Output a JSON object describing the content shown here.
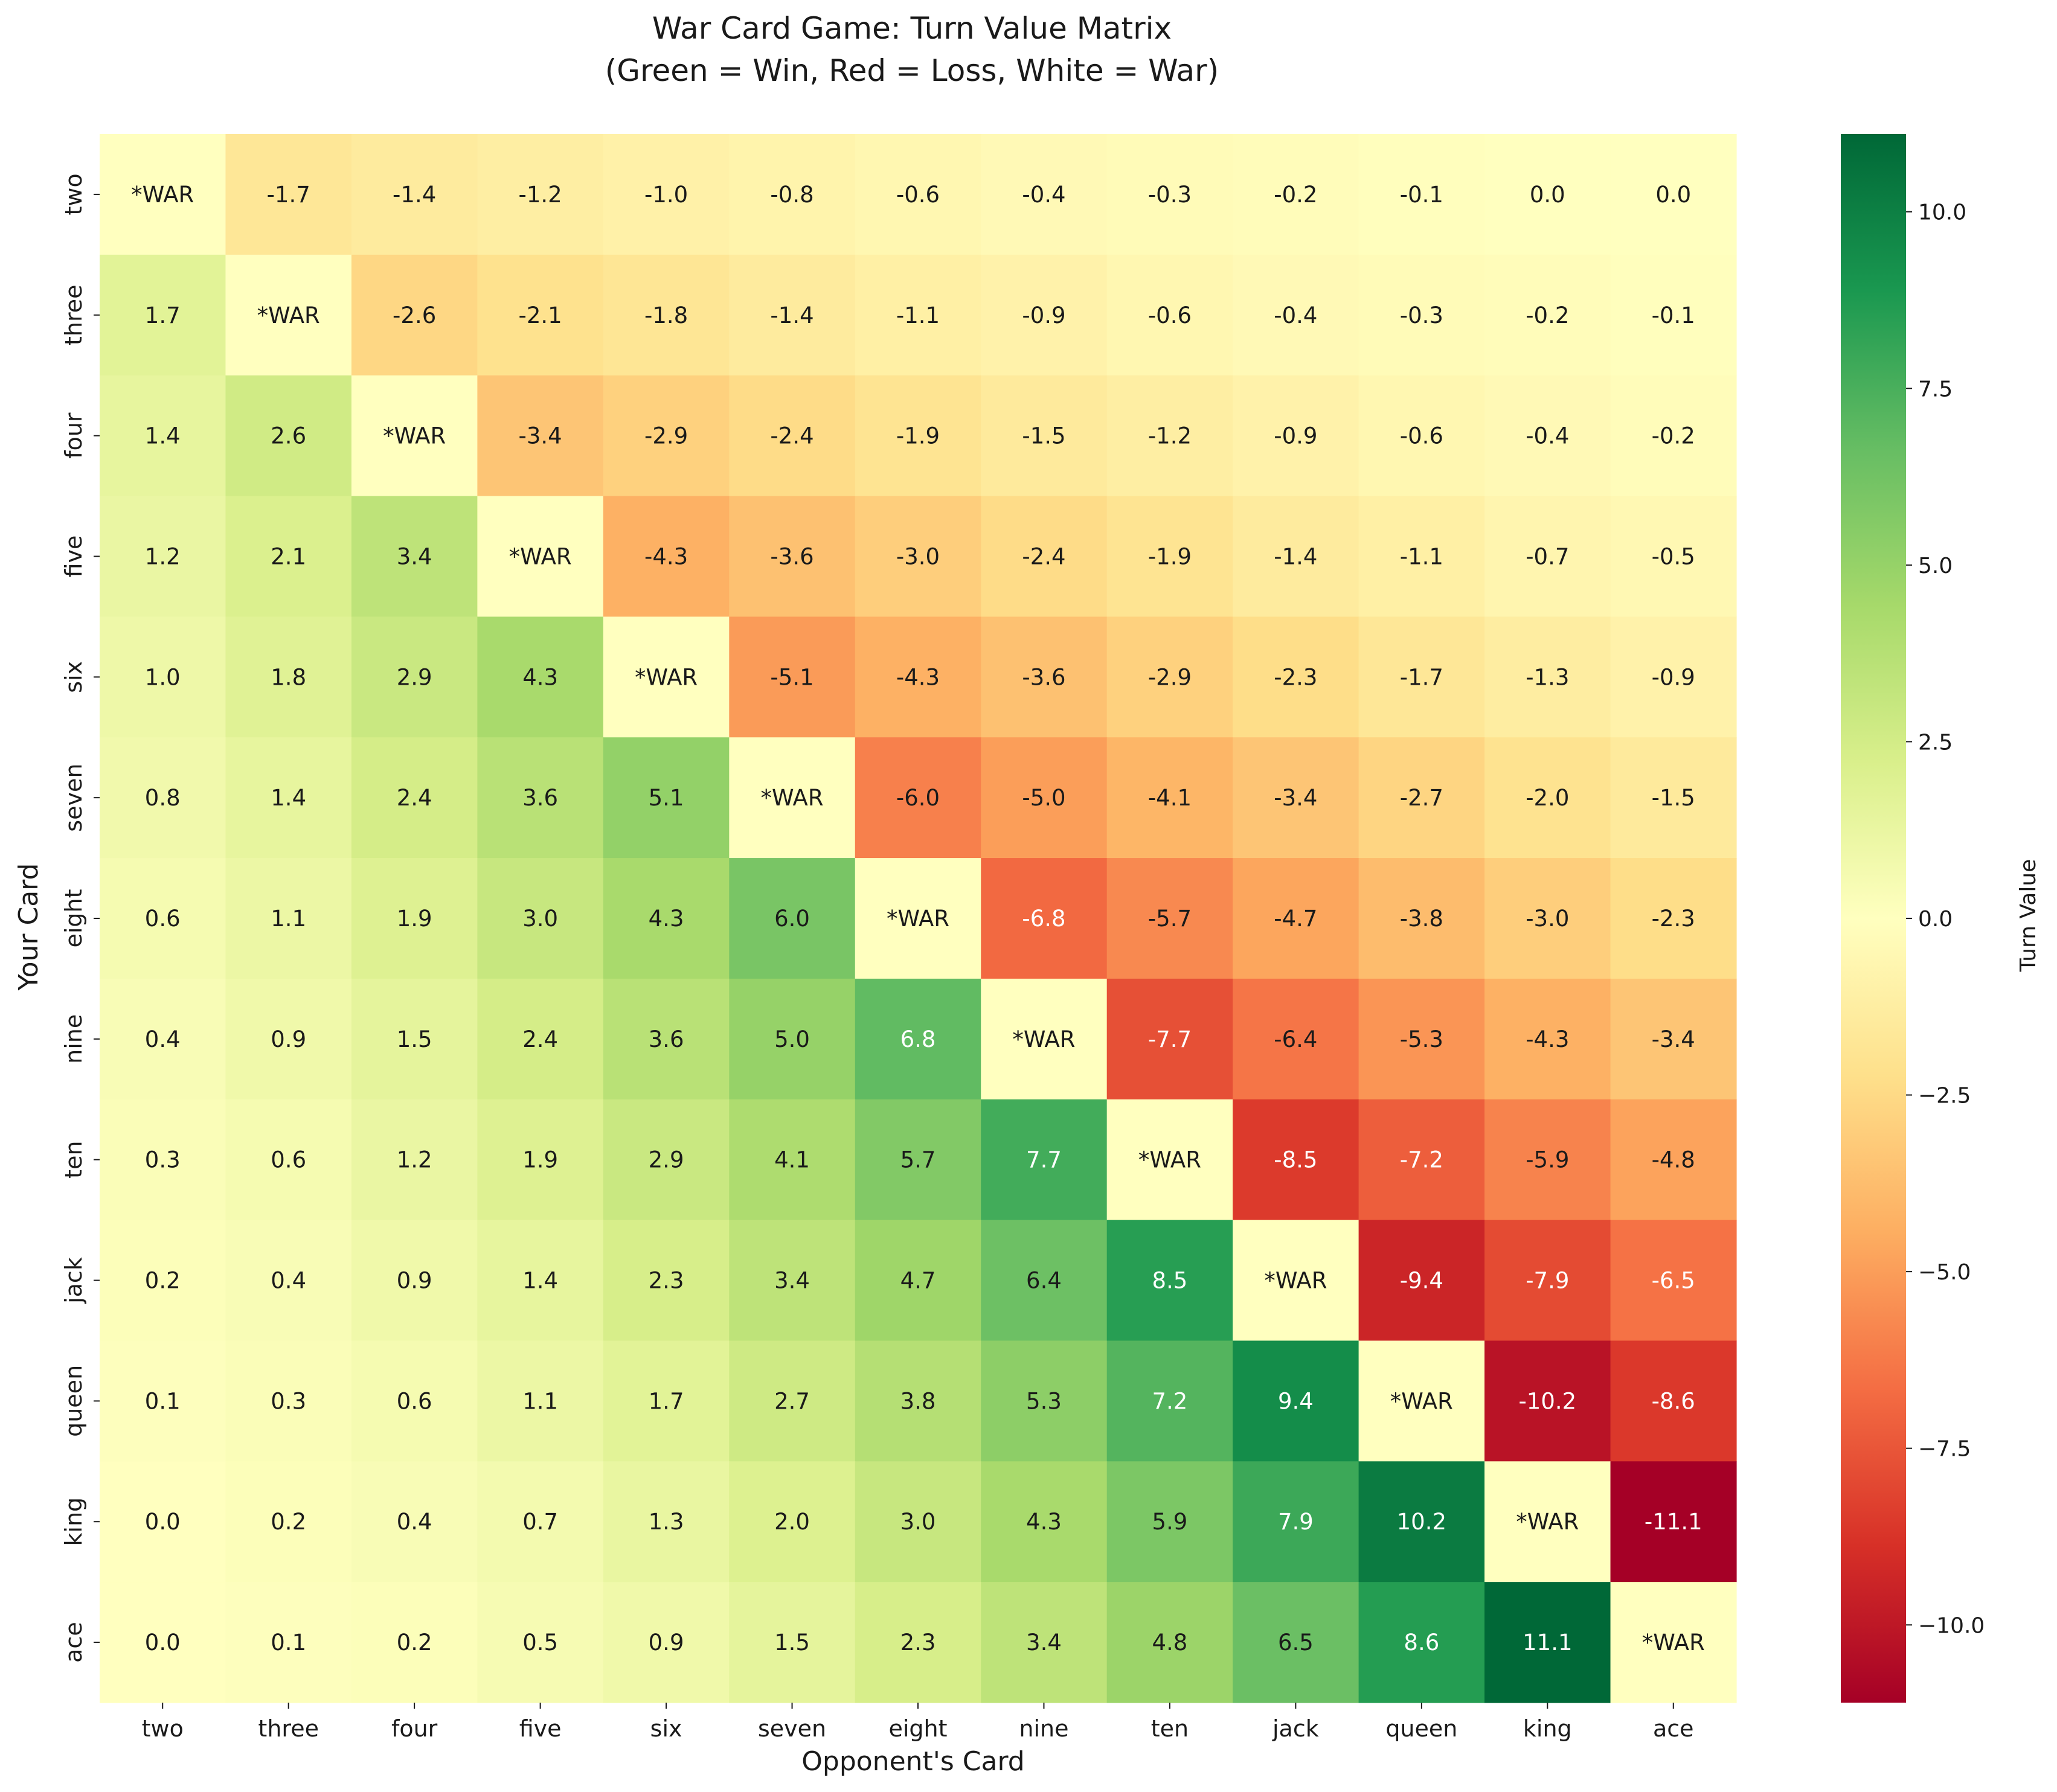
{
  "chart_data": {
    "type": "heatmap",
    "title_line1": "War Card Game: Turn Value Matrix",
    "title_line2": "(Green = Win, Red = Loss, White = War)",
    "xlabel": "Opponent's Card",
    "ylabel": "Your Card",
    "colorbar_label": "Turn Value",
    "colormap": "RdYlGn",
    "vmin": -11.1,
    "vmax": 11.1,
    "war_label": "*WAR",
    "x_categories": [
      "two",
      "three",
      "four",
      "five",
      "six",
      "seven",
      "eight",
      "nine",
      "ten",
      "jack",
      "queen",
      "king",
      "ace"
    ],
    "y_categories": [
      "two",
      "three",
      "four",
      "five",
      "six",
      "seven",
      "eight",
      "nine",
      "ten",
      "jack",
      "queen",
      "king",
      "ace"
    ],
    "values": [
      [
        null,
        -1.7,
        -1.4,
        -1.2,
        -1.0,
        -0.8,
        -0.6,
        -0.4,
        -0.3,
        -0.2,
        -0.1,
        -0.0,
        -0.0
      ],
      [
        1.7,
        null,
        -2.6,
        -2.1,
        -1.8,
        -1.4,
        -1.1,
        -0.9,
        -0.6,
        -0.4,
        -0.3,
        -0.2,
        -0.1
      ],
      [
        1.4,
        2.6,
        null,
        -3.4,
        -2.9,
        -2.4,
        -1.9,
        -1.5,
        -1.2,
        -0.9,
        -0.6,
        -0.4,
        -0.2
      ],
      [
        1.2,
        2.1,
        3.4,
        null,
        -4.3,
        -3.6,
        -3.0,
        -2.4,
        -1.9,
        -1.4,
        -1.1,
        -0.7,
        -0.5
      ],
      [
        1.0,
        1.8,
        2.9,
        4.3,
        null,
        -5.1,
        -4.3,
        -3.6,
        -2.9,
        -2.3,
        -1.7,
        -1.3,
        -0.9
      ],
      [
        0.8,
        1.4,
        2.4,
        3.6,
        5.1,
        null,
        -6.0,
        -5.0,
        -4.1,
        -3.4,
        -2.7,
        -2.0,
        -1.5
      ],
      [
        0.6,
        1.1,
        1.9,
        3.0,
        4.3,
        6.0,
        null,
        -6.8,
        -5.7,
        -4.7,
        -3.8,
        -3.0,
        -2.3
      ],
      [
        0.4,
        0.9,
        1.5,
        2.4,
        3.6,
        5.0,
        6.8,
        null,
        -7.7,
        -6.4,
        -5.3,
        -4.3,
        -3.4
      ],
      [
        0.3,
        0.6,
        1.2,
        1.9,
        2.9,
        4.1,
        5.7,
        7.7,
        null,
        -8.5,
        -7.2,
        -5.9,
        -4.8
      ],
      [
        0.2,
        0.4,
        0.9,
        1.4,
        2.3,
        3.4,
        4.7,
        6.4,
        8.5,
        null,
        -9.4,
        -7.9,
        -6.5
      ],
      [
        0.1,
        0.3,
        0.6,
        1.1,
        1.7,
        2.7,
        3.8,
        5.3,
        7.2,
        9.4,
        null,
        -10.2,
        -8.6
      ],
      [
        0.0,
        0.2,
        0.4,
        0.7,
        1.3,
        2.0,
        3.0,
        4.3,
        5.9,
        7.9,
        10.2,
        null,
        -11.1
      ],
      [
        0.0,
        0.1,
        0.2,
        0.5,
        0.9,
        1.5,
        2.3,
        3.4,
        4.8,
        6.5,
        8.6,
        11.1,
        null
      ]
    ],
    "colorbar_ticks": [
      10.0,
      7.5,
      5.0,
      2.5,
      0.0,
      -2.5,
      -5.0,
      -7.5,
      -10.0
    ],
    "colorbar_tick_labels": [
      "10.0",
      "7.5",
      "5.0",
      "2.5",
      "0.0",
      "−2.5",
      "−5.0",
      "−7.5",
      "−10.0"
    ]
  }
}
